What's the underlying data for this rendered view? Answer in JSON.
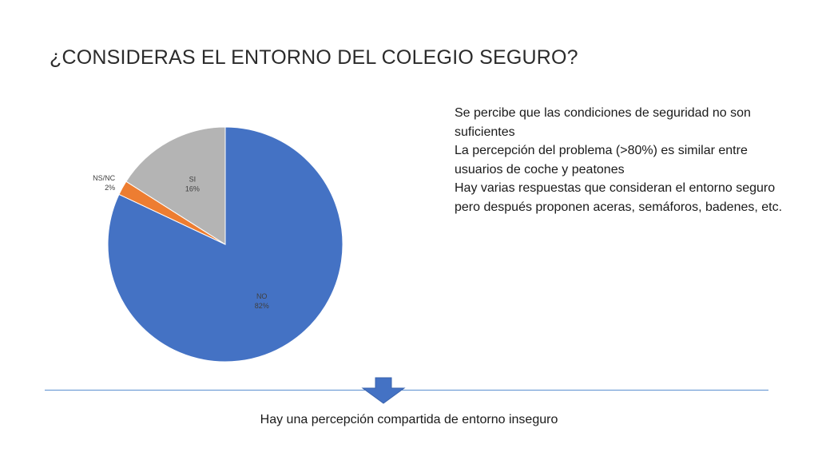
{
  "slide": {
    "title": "¿CONSIDERAS EL ENTORNO DEL COLEGIO SEGURO?",
    "notes": [
      "Se percibe que las condiciones de seguridad no son suficientes",
      "La percepción del problema (>80%) es similar entre usuarios de coche y peatones",
      "Hay varias respuestas que consideran el entorno seguro pero después proponen aceras, semáforos, badenes, etc."
    ],
    "conclusion": "Hay una percepción compartida de entorno inseguro",
    "colors": {
      "divider": "#5b8fd0",
      "arrow": "#4472c4"
    }
  },
  "chart_data": {
    "type": "pie",
    "title": "",
    "slices": [
      {
        "label": "NO",
        "value": 82,
        "display": "82%",
        "color": "#4472c4"
      },
      {
        "label": "NS/NC",
        "value": 2,
        "display": "2%",
        "color": "#ed7d31"
      },
      {
        "label": "SI",
        "value": 16,
        "display": "16%",
        "color": "#b4b4b4"
      }
    ]
  }
}
